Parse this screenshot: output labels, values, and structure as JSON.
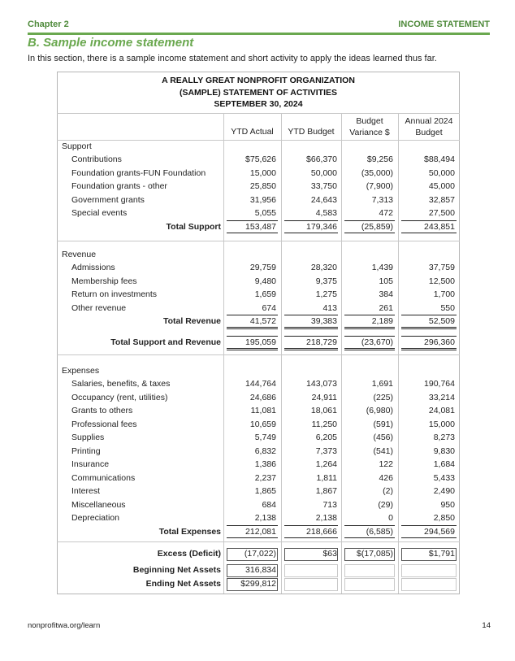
{
  "header": {
    "chapter": "Chapter 2",
    "section": "INCOME STATEMENT"
  },
  "heading": "B. Sample income statement",
  "intro": "In this section, there is a sample income statement and short activity to apply the ideas learned thus far.",
  "statement": {
    "title_lines": [
      "A REALLY GREAT NONPROFIT ORGANIZATION",
      "(SAMPLE) STATEMENT OF ACTIVITIES",
      "SEPTEMBER 30, 2024"
    ],
    "columns": [
      [
        "YTD Actual"
      ],
      [
        "YTD Budget"
      ],
      [
        "Budget",
        "Variance $"
      ],
      [
        "Annual 2024",
        "Budget"
      ]
    ],
    "sections": [
      {
        "label": "Support",
        "rows": [
          {
            "label": "Contributions",
            "values": [
              "$75,626",
              "$66,370",
              "$9,256",
              "$88,494"
            ]
          },
          {
            "label": "Foundation grants-FUN Foundation",
            "values": [
              "15,000",
              "50,000",
              "(35,000)",
              "50,000"
            ]
          },
          {
            "label": "Foundation grants - other",
            "values": [
              "25,850",
              "33,750",
              "(7,900)",
              "45,000"
            ]
          },
          {
            "label": "Government grants",
            "values": [
              "31,956",
              "24,643",
              "7,313",
              "32,857"
            ]
          },
          {
            "label": "Special events",
            "values": [
              "5,055",
              "4,583",
              "472",
              "27,500"
            ]
          }
        ],
        "total": {
          "label": "Total Support",
          "values": [
            "153,487",
            "179,346",
            "(25,859)",
            "243,851"
          ]
        }
      },
      {
        "label": "Revenue",
        "rows": [
          {
            "label": "Admissions",
            "values": [
              "29,759",
              "28,320",
              "1,439",
              "37,759"
            ]
          },
          {
            "label": "Membership fees",
            "values": [
              "9,480",
              "9,375",
              "105",
              "12,500"
            ]
          },
          {
            "label": "Return on investments",
            "values": [
              "1,659",
              "1,275",
              "384",
              "1,700"
            ]
          },
          {
            "label": "Other revenue",
            "values": [
              "674",
              "413",
              "261",
              "550"
            ]
          }
        ],
        "total": {
          "label": "Total Revenue",
          "values": [
            "41,572",
            "39,383",
            "2,189",
            "52,509"
          ]
        }
      },
      {
        "label": "",
        "rows": [],
        "total": {
          "label": "Total Support and Revenue",
          "values": [
            "195,059",
            "218,729",
            "(23,670)",
            "296,360"
          ]
        }
      },
      {
        "label": "Expenses",
        "rows": [
          {
            "label": "Salaries, benefits, & taxes",
            "values": [
              "144,764",
              "143,073",
              "1,691",
              "190,764"
            ]
          },
          {
            "label": "Occupancy (rent, utilities)",
            "values": [
              "24,686",
              "24,911",
              "(225)",
              "33,214"
            ]
          },
          {
            "label": "Grants to others",
            "values": [
              "11,081",
              "18,061",
              "(6,980)",
              "24,081"
            ]
          },
          {
            "label": "Professional fees",
            "values": [
              "10,659",
              "11,250",
              "(591)",
              "15,000"
            ]
          },
          {
            "label": "Supplies",
            "values": [
              "5,749",
              "6,205",
              "(456)",
              "8,273"
            ]
          },
          {
            "label": "Printing",
            "values": [
              "6,832",
              "7,373",
              "(541)",
              "9,830"
            ]
          },
          {
            "label": "Insurance",
            "values": [
              "1,386",
              "1,264",
              "122",
              "1,684"
            ]
          },
          {
            "label": "Communications",
            "values": [
              "2,237",
              "1,811",
              "426",
              "5,433"
            ]
          },
          {
            "label": "Interest",
            "values": [
              "1,865",
              "1,867",
              "(2)",
              "2,490"
            ]
          },
          {
            "label": "Miscellaneous",
            "values": [
              "684",
              "713",
              "(29)",
              "950"
            ]
          },
          {
            "label": "Depreciation",
            "values": [
              "2,138",
              "2,138",
              "0",
              "2,850"
            ]
          }
        ],
        "total": {
          "label": "Total Expenses",
          "values": [
            "212,081",
            "218,666",
            "(6,585)",
            "294,569"
          ]
        }
      }
    ],
    "summary": [
      {
        "label": "Excess (Deficit)",
        "values": [
          "(17,022)",
          "$63",
          "$(17,085)",
          "$1,791"
        ]
      },
      {
        "label": "Beginning Net Assets",
        "values": [
          "316,834",
          "",
          "",
          ""
        ]
      },
      {
        "label": "Ending Net Assets",
        "values": [
          "$299,812",
          "",
          "",
          ""
        ]
      }
    ]
  },
  "footer": {
    "url": "nonprofitwa.org/learn",
    "page": "14"
  }
}
